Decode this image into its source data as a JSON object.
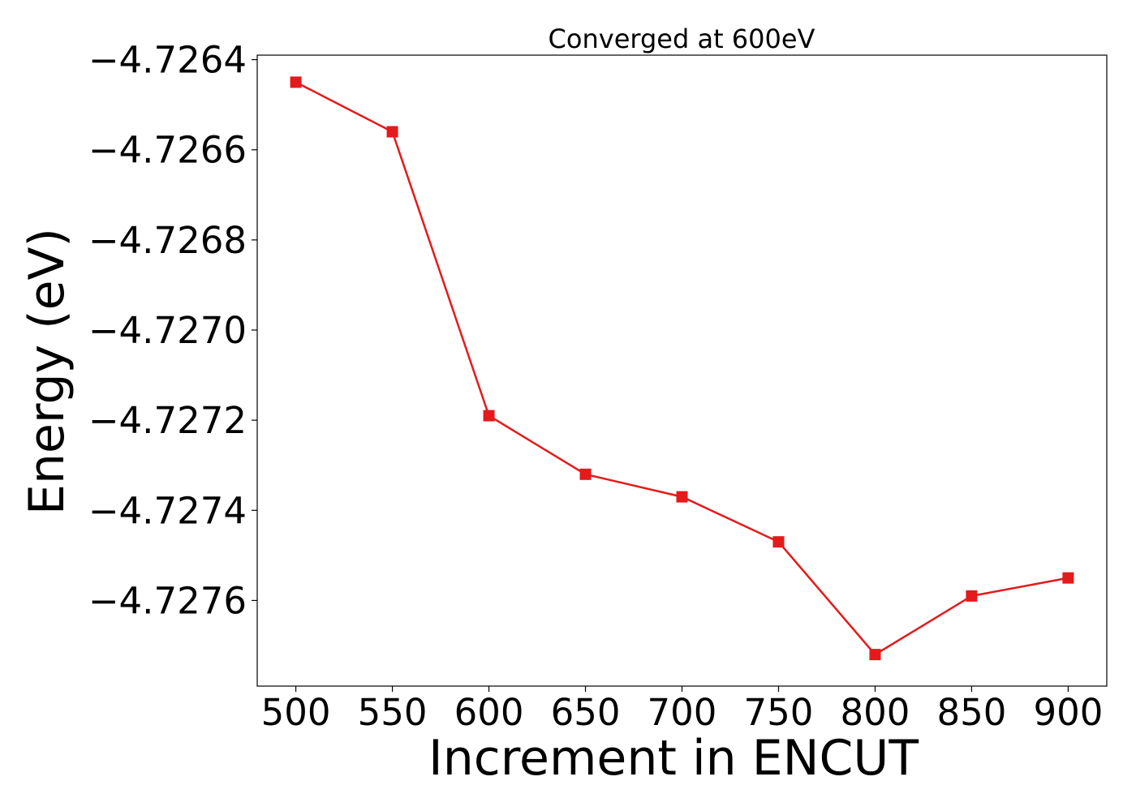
{
  "chart_data": {
    "type": "line",
    "title": "Converged at 600eV",
    "xlabel": "Increment in ENCUT",
    "ylabel": "Energy (eV)",
    "x": [
      500,
      550,
      600,
      650,
      700,
      750,
      800,
      850,
      900
    ],
    "series": [
      {
        "values": [
          -4.72645,
          -4.72656,
          -4.72719,
          -4.72732,
          -4.72737,
          -4.72747,
          -4.72772,
          -4.72759,
          -4.72755
        ],
        "color": "#e41a1c",
        "marker": "square"
      }
    ],
    "xticks": [
      500,
      550,
      600,
      650,
      700,
      750,
      800,
      850,
      900
    ],
    "xtick_labels": [
      "500",
      "550",
      "600",
      "650",
      "700",
      "750",
      "800",
      "850",
      "900"
    ],
    "yticks": [
      -4.7264,
      -4.7266,
      -4.7268,
      -4.727,
      -4.7272,
      -4.7274,
      -4.7276
    ],
    "ytick_labels": [
      "−4.7264",
      "−4.7266",
      "−4.7268",
      "−4.7270",
      "−4.7272",
      "−4.7274",
      "−4.7276"
    ],
    "xlim": [
      480,
      920
    ],
    "ylim": [
      -4.72779,
      -4.72639
    ],
    "grid": false,
    "legend": "none"
  }
}
